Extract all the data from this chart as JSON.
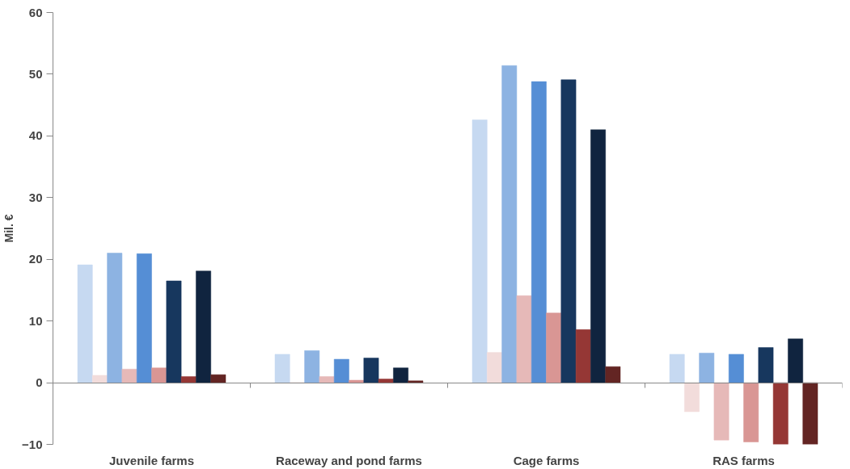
{
  "chart_data": {
    "type": "bar",
    "ylabel": "Mil. €",
    "categories": [
      "Juvenile farms",
      "Raceway and pond farms",
      "Cage farms",
      "RAS farms"
    ],
    "series": [
      {
        "color": "#c6d9f1",
        "values": [
          19.1,
          4.6,
          42.6,
          4.6
        ]
      },
      {
        "color": "#f2dcdb",
        "values": [
          1.2,
          0,
          4.9,
          -4.7
        ]
      },
      {
        "color": "#8db3e2",
        "values": [
          21.0,
          5.2,
          51.4,
          4.8
        ]
      },
      {
        "color": "#e6b9b8",
        "values": [
          2.2,
          1.0,
          14.1,
          -9.3
        ]
      },
      {
        "color": "#558ed5",
        "values": [
          20.9,
          3.8,
          48.8,
          4.6
        ]
      },
      {
        "color": "#d99694",
        "values": [
          2.4,
          0.4,
          11.3,
          -9.6
        ]
      },
      {
        "color": "#17375e",
        "values": [
          16.5,
          4.0,
          49.1,
          5.7
        ]
      },
      {
        "color": "#953735",
        "values": [
          1.0,
          0.6,
          8.6,
          -10.0
        ]
      },
      {
        "color": "#10243f",
        "values": [
          18.1,
          2.4,
          41.0,
          7.1
        ]
      },
      {
        "color": "#632523",
        "values": [
          1.3,
          0.3,
          2.6,
          -10.0
        ]
      }
    ],
    "ylim": [
      -10,
      60
    ],
    "yticks": [
      -10,
      0,
      10,
      20,
      30,
      40,
      50,
      60
    ]
  }
}
